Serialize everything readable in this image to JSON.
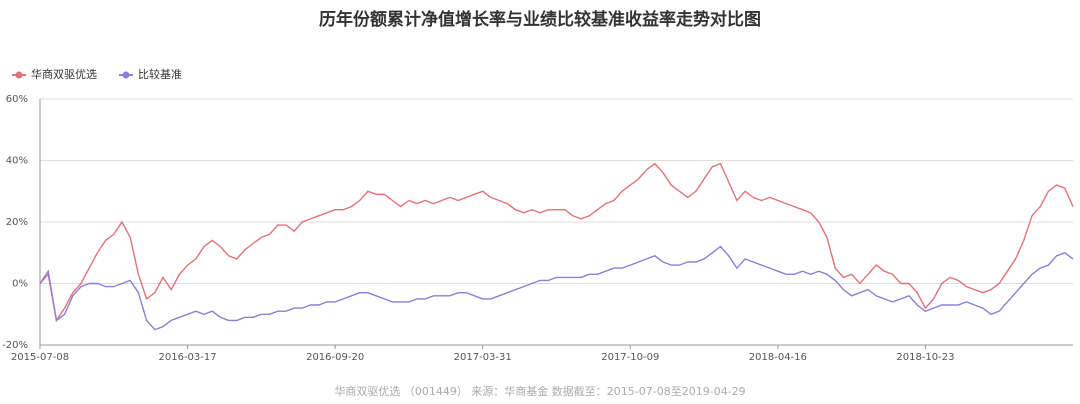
{
  "chart_data": {
    "type": "line",
    "title": "历年份额累计净值增长率与业绩比较基准收益率走势对比图",
    "footnote": "华商双驱优选 （001449） 来源：华商基金 数据截至：2015-07-08至2019-04-29",
    "legend": "top-left",
    "grid": true,
    "categories": [
      "2015-07-08",
      null,
      null,
      null,
      null,
      null,
      null,
      null,
      null,
      null,
      null,
      null,
      null,
      null,
      null,
      null,
      null,
      null,
      "2016-03-17",
      null,
      null,
      null,
      null,
      null,
      null,
      null,
      null,
      null,
      null,
      null,
      null,
      null,
      null,
      null,
      null,
      null,
      "2016-09-20",
      null,
      null,
      null,
      null,
      null,
      null,
      null,
      null,
      null,
      null,
      null,
      null,
      null,
      null,
      null,
      null,
      null,
      "2017-03-31",
      null,
      null,
      null,
      null,
      null,
      null,
      null,
      null,
      null,
      null,
      null,
      null,
      null,
      null,
      null,
      null,
      null,
      "2017-10-09",
      null,
      null,
      null,
      null,
      null,
      null,
      null,
      null,
      null,
      null,
      null,
      null,
      null,
      null,
      null,
      null,
      null,
      "2018-04-16",
      null,
      null,
      null,
      null,
      null,
      null,
      null,
      null,
      null,
      null,
      null,
      null,
      null,
      null,
      null,
      null,
      null,
      "2018-10-23",
      null,
      null,
      null,
      null,
      null,
      null,
      null,
      null,
      null,
      null,
      null,
      null,
      null,
      null,
      null,
      null,
      null,
      null
    ],
    "ylim": [
      -20,
      60
    ],
    "yticks": [
      {
        "value": -20,
        "label": "-20%"
      },
      {
        "value": 0,
        "label": "0%"
      },
      {
        "value": 20,
        "label": "20%"
      },
      {
        "value": 40,
        "label": "40%"
      },
      {
        "value": 60,
        "label": "60%"
      }
    ],
    "series": [
      {
        "name": "华商双驱优选",
        "color": "#e0737a",
        "values": [
          0,
          3,
          -12,
          -8,
          -3,
          0,
          5,
          10,
          14,
          16,
          20,
          15,
          3,
          -5,
          -3,
          2,
          -2,
          3,
          6,
          8,
          12,
          14,
          12,
          9,
          8,
          11,
          13,
          15,
          16,
          19,
          19,
          17,
          20,
          21,
          22,
          23,
          24,
          24,
          25,
          27,
          30,
          29,
          29,
          27,
          25,
          27,
          26,
          27,
          26,
          27,
          28,
          27,
          28,
          29,
          30,
          28,
          27,
          26,
          24,
          23,
          24,
          23,
          24,
          24,
          24,
          22,
          21,
          22,
          24,
          26,
          27,
          30,
          32,
          34,
          37,
          39,
          36,
          32,
          30,
          28,
          30,
          34,
          38,
          39,
          33,
          27,
          30,
          28,
          27,
          28,
          27,
          26,
          25,
          24,
          23,
          20,
          15,
          5,
          2,
          3,
          0,
          3,
          6,
          4,
          3,
          0,
          0,
          -3,
          -8,
          -5,
          0,
          2,
          1,
          -1,
          -2,
          -3,
          -2,
          0,
          4,
          8,
          14,
          22,
          25,
          30,
          32,
          31,
          25
        ]
      },
      {
        "name": "比较基准",
        "color": "#8b7fd8",
        "values": [
          0,
          4,
          -12,
          -10,
          -4,
          -1,
          0,
          0,
          -1,
          -1,
          0,
          1,
          -3,
          -12,
          -15,
          -14,
          -12,
          -11,
          -10,
          -9,
          -10,
          -9,
          -11,
          -12,
          -12,
          -11,
          -11,
          -10,
          -10,
          -9,
          -9,
          -8,
          -8,
          -7,
          -7,
          -6,
          -6,
          -5,
          -4,
          -3,
          -3,
          -4,
          -5,
          -6,
          -6,
          -6,
          -5,
          -5,
          -4,
          -4,
          -4,
          -3,
          -3,
          -4,
          -5,
          -5,
          -4,
          -3,
          -2,
          -1,
          0,
          1,
          1,
          2,
          2,
          2,
          2,
          3,
          3,
          4,
          5,
          5,
          6,
          7,
          8,
          9,
          7,
          6,
          6,
          7,
          7,
          8,
          10,
          12,
          9,
          5,
          8,
          7,
          6,
          5,
          4,
          3,
          3,
          4,
          3,
          4,
          3,
          1,
          -2,
          -4,
          -3,
          -2,
          -4,
          -5,
          -6,
          -5,
          -4,
          -7,
          -9,
          -8,
          -7,
          -7,
          -7,
          -6,
          -7,
          -8,
          -10,
          -9,
          -6,
          -3,
          0,
          3,
          5,
          6,
          9,
          10,
          8
        ]
      }
    ]
  }
}
